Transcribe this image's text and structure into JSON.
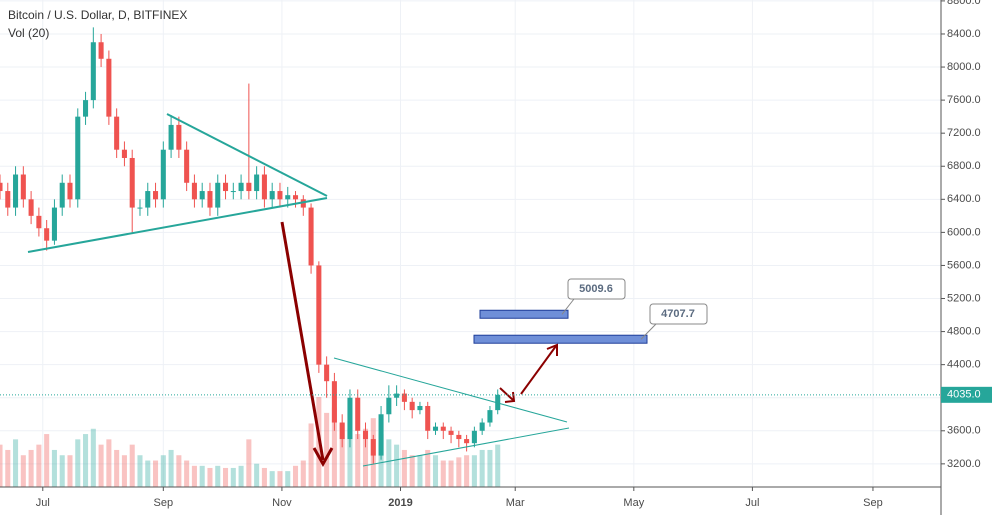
{
  "chart_data": {
    "type": "candlestick",
    "title": "Bitcoin / U.S. Dollar, D, BITFINEX",
    "subtitle": "Vol (20)",
    "up_color": "#26a69a",
    "down_color": "#ef5350",
    "x": [
      -22,
      -18,
      -14,
      -10,
      -6,
      -2,
      2,
      6,
      10,
      14,
      18,
      22,
      26,
      30,
      34,
      38,
      42,
      46,
      50,
      54,
      58,
      62,
      66,
      70,
      74,
      78,
      82,
      86,
      90,
      94,
      98,
      102,
      106,
      110,
      114,
      118,
      122,
      126,
      130,
      134,
      138,
      142,
      146,
      150,
      154,
      158,
      162,
      166,
      170,
      174,
      178,
      182,
      186,
      190,
      194,
      198,
      202,
      206,
      210,
      214,
      218,
      222,
      226,
      230,
      234
    ],
    "open": [
      6600,
      6500,
      6300,
      6700,
      6400,
      6200,
      6050,
      5900,
      6300,
      6600,
      6400,
      7400,
      7600,
      8300,
      8100,
      7400,
      7000,
      6900,
      6300,
      6300,
      6500,
      6400,
      7000,
      7300,
      7000,
      6600,
      6400,
      6500,
      6300,
      6600,
      6500,
      6500,
      6600,
      6500,
      6700,
      6400,
      6500,
      6400,
      6450,
      6400,
      6300,
      5600,
      4400,
      4200,
      3700,
      3500,
      4000,
      3600,
      3500,
      3300,
      3800,
      4000,
      4050,
      3950,
      3850,
      3900,
      3600,
      3650,
      3600,
      3550,
      3500,
      3450,
      3600,
      3700,
      3850
    ],
    "high": [
      6700,
      6600,
      6800,
      6800,
      6500,
      6300,
      6150,
      6400,
      6700,
      6700,
      7500,
      7700,
      8480,
      8400,
      8200,
      7500,
      7100,
      7000,
      6400,
      6600,
      6600,
      7100,
      7420,
      7400,
      7100,
      6700,
      6600,
      6600,
      6700,
      6700,
      6600,
      6700,
      7800,
      6800,
      6800,
      6600,
      6600,
      6550,
      6500,
      6450,
      6350,
      5650,
      4500,
      4300,
      3800,
      4100,
      4100,
      3700,
      3550,
      3900,
      4150,
      4150,
      4100,
      4000,
      3950,
      3950,
      3700,
      3700,
      3650,
      3600,
      3550,
      3650,
      3750,
      3900,
      4100
    ],
    "low": [
      6400,
      6200,
      6200,
      6300,
      6100,
      5950,
      5780,
      5850,
      6200,
      6300,
      6300,
      7300,
      7500,
      8000,
      7300,
      6900,
      6800,
      6000,
      6200,
      6200,
      6300,
      6300,
      6900,
      6900,
      6500,
      6300,
      6300,
      6200,
      6200,
      6400,
      6400,
      6400,
      6400,
      6400,
      6300,
      6300,
      6300,
      6300,
      6300,
      6200,
      5500,
      4300,
      4000,
      3600,
      3400,
      3400,
      3500,
      3400,
      3200,
      3250,
      3700,
      3900,
      3850,
      3750,
      3800,
      3500,
      3550,
      3500,
      3450,
      3400,
      3350,
      3400,
      3550,
      3650,
      3800
    ],
    "close": [
      6500,
      6300,
      6700,
      6400,
      6200,
      6050,
      5900,
      6300,
      6600,
      6400,
      7400,
      7600,
      8300,
      8100,
      7400,
      7000,
      6900,
      6300,
      6300,
      6500,
      6400,
      7000,
      7300,
      7000,
      6600,
      6400,
      6500,
      6300,
      6600,
      6500,
      6500,
      6600,
      6500,
      6700,
      6400,
      6500,
      6400,
      6450,
      6400,
      6300,
      5600,
      4400,
      4200,
      3700,
      3500,
      4000,
      3600,
      3500,
      3300,
      3800,
      4000,
      4050,
      3950,
      3850,
      3900,
      3600,
      3650,
      3600,
      3550,
      3500,
      3450,
      3600,
      3700,
      3850,
      4035
    ],
    "volume": [
      40,
      35,
      45,
      30,
      35,
      40,
      50,
      35,
      30,
      30,
      45,
      50,
      55,
      40,
      45,
      35,
      30,
      40,
      30,
      25,
      25,
      30,
      35,
      30,
      25,
      20,
      20,
      18,
      20,
      18,
      18,
      20,
      45,
      22,
      18,
      15,
      15,
      15,
      20,
      25,
      60,
      85,
      70,
      75,
      60,
      55,
      50,
      55,
      65,
      50,
      45,
      40,
      35,
      30,
      30,
      35,
      30,
      25,
      25,
      28,
      30,
      30,
      35,
      35,
      40
    ],
    "xlim": [
      -22,
      462
    ],
    "xticks": [
      {
        "value": 0,
        "label": "Jul"
      },
      {
        "value": 62,
        "label": "Sep"
      },
      {
        "value": 123,
        "label": "Nov"
      },
      {
        "value": 184,
        "label": "2019"
      },
      {
        "value": 243,
        "label": "Mar"
      },
      {
        "value": 304,
        "label": "May"
      },
      {
        "value": 365,
        "label": "Jul"
      },
      {
        "value": 427,
        "label": "Sep"
      }
    ],
    "ylim": [
      2920,
      8811
    ],
    "yticks": [
      {
        "value": 3200,
        "label": "3200.0"
      },
      {
        "value": 3600,
        "label": "3600.0"
      },
      {
        "value": 4000,
        "label": "4000.0"
      },
      {
        "value": 4400,
        "label": "4400.0"
      },
      {
        "value": 4800,
        "label": "4800.0"
      },
      {
        "value": 5200,
        "label": "5200.0"
      },
      {
        "value": 5600,
        "label": "5600.0"
      },
      {
        "value": 6000,
        "label": "6000.0"
      },
      {
        "value": 6400,
        "label": "6400.0"
      },
      {
        "value": 6800,
        "label": "6800.0"
      },
      {
        "value": 7200,
        "label": "7200.0"
      },
      {
        "value": 7600,
        "label": "7600.0"
      },
      {
        "value": 8000,
        "label": "8000.0"
      },
      {
        "value": 8400,
        "label": "8400.0"
      },
      {
        "value": 8800,
        "label": "8800.0"
      }
    ],
    "grid": true,
    "targets": [
      5009.6,
      4707.7
    ],
    "last_price": {
      "value": 4035,
      "label": "4035.0"
    }
  }
}
